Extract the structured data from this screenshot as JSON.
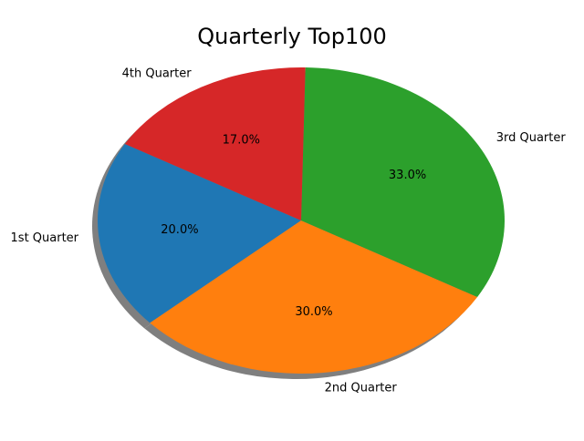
{
  "chart_data": {
    "type": "pie",
    "title": "Quarterly Top100",
    "shadow": true,
    "start_angle_deg": 150,
    "direction": "counterclockwise",
    "slices": [
      {
        "label": "1st Quarter",
        "value": 20.0,
        "pct_label": "20.0%",
        "color": "#1f77b4"
      },
      {
        "label": "2nd Quarter",
        "value": 30.0,
        "pct_label": "30.0%",
        "color": "#ff7f0e"
      },
      {
        "label": "3rd Quarter",
        "value": 33.0,
        "pct_label": "33.0%",
        "color": "#2ca02c"
      },
      {
        "label": "4th Quarter",
        "value": 17.0,
        "pct_label": "17.0%",
        "color": "#d62728"
      }
    ]
  }
}
